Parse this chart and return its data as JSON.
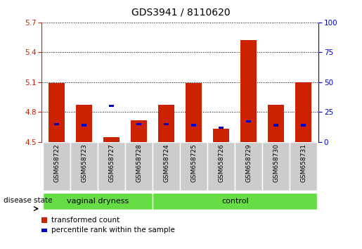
{
  "title": "GDS3941 / 8110620",
  "samples": [
    "GSM658722",
    "GSM658723",
    "GSM658727",
    "GSM658728",
    "GSM658724",
    "GSM658725",
    "GSM658726",
    "GSM658729",
    "GSM658730",
    "GSM658731"
  ],
  "red_values": [
    5.09,
    4.87,
    4.55,
    4.72,
    4.87,
    5.09,
    4.63,
    5.52,
    4.87,
    5.1
  ],
  "blue_pct": [
    15,
    14,
    30,
    15,
    15,
    14,
    12,
    17,
    14,
    14
  ],
  "ymin": 4.5,
  "ymax": 5.7,
  "yticks_left": [
    4.5,
    4.8,
    5.1,
    5.4,
    5.7
  ],
  "yticks_right": [
    0,
    25,
    50,
    75,
    100
  ],
  "bar_color": "#cc2200",
  "blue_color": "#0000cc",
  "group1_samples": 4,
  "group1_label": "vaginal dryness",
  "group2_label": "control",
  "group_bg": "#66dd44",
  "sample_bg": "#cccccc",
  "legend_red": "transformed count",
  "legend_blue": "percentile rank within the sample",
  "disease_state_label": "disease state"
}
